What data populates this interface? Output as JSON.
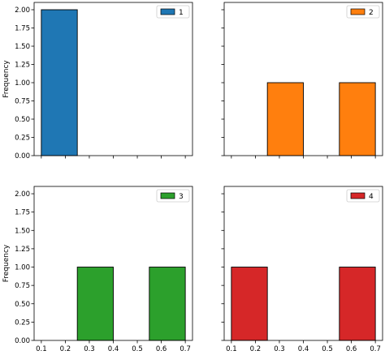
{
  "chart_data": [
    {
      "type": "bar",
      "subtype": "histogram",
      "bins": [
        [
          0.1,
          0.25
        ],
        [
          0.25,
          0.4
        ],
        [
          0.4,
          0.55
        ],
        [
          0.55,
          0.7
        ]
      ],
      "series": [
        {
          "name": "1",
          "values": [
            2,
            0,
            0,
            0
          ]
        }
      ],
      "color": "#1f77b4",
      "xlim": [
        0.07,
        0.73
      ],
      "ylim": [
        0,
        2.1
      ],
      "yticks": [
        "0.00",
        "0.25",
        "0.50",
        "0.75",
        "1.00",
        "1.25",
        "1.50",
        "1.75",
        "2.00"
      ],
      "xticks": [],
      "ylabel": "Frequency",
      "legend": "top-right"
    },
    {
      "type": "bar",
      "subtype": "histogram",
      "bins": [
        [
          0.1,
          0.25
        ],
        [
          0.25,
          0.4
        ],
        [
          0.4,
          0.55
        ],
        [
          0.55,
          0.7
        ]
      ],
      "series": [
        {
          "name": "2",
          "values": [
            0,
            1,
            0,
            1
          ]
        }
      ],
      "color": "#ff7f0e",
      "xlim": [
        0.07,
        0.73
      ],
      "ylim": [
        0,
        2.1
      ],
      "yticks": [],
      "xticks": [],
      "ylabel": "",
      "legend": "top-right"
    },
    {
      "type": "bar",
      "subtype": "histogram",
      "bins": [
        [
          0.1,
          0.25
        ],
        [
          0.25,
          0.4
        ],
        [
          0.4,
          0.55
        ],
        [
          0.55,
          0.7
        ]
      ],
      "series": [
        {
          "name": "3",
          "values": [
            0,
            1,
            0,
            1
          ]
        }
      ],
      "color": "#2ca02c",
      "xlim": [
        0.07,
        0.73
      ],
      "ylim": [
        0,
        2.1
      ],
      "yticks": [
        "0.00",
        "0.25",
        "0.50",
        "0.75",
        "1.00",
        "1.25",
        "1.50",
        "1.75",
        "2.00"
      ],
      "xticks": [
        "0.1",
        "0.2",
        "0.3",
        "0.4",
        "0.5",
        "0.6",
        "0.7"
      ],
      "ylabel": "Frequency",
      "legend": "top-right"
    },
    {
      "type": "bar",
      "subtype": "histogram",
      "bins": [
        [
          0.1,
          0.25
        ],
        [
          0.25,
          0.4
        ],
        [
          0.4,
          0.55
        ],
        [
          0.55,
          0.7
        ]
      ],
      "series": [
        {
          "name": "4",
          "values": [
            1,
            0,
            0,
            1
          ]
        }
      ],
      "color": "#d62728",
      "xlim": [
        0.07,
        0.73
      ],
      "ylim": [
        0,
        2.1
      ],
      "yticks": [],
      "xticks": [
        "0.1",
        "0.2",
        "0.3",
        "0.4",
        "0.5",
        "0.6",
        "0.7"
      ],
      "ylabel": "",
      "legend": "top-right"
    }
  ]
}
